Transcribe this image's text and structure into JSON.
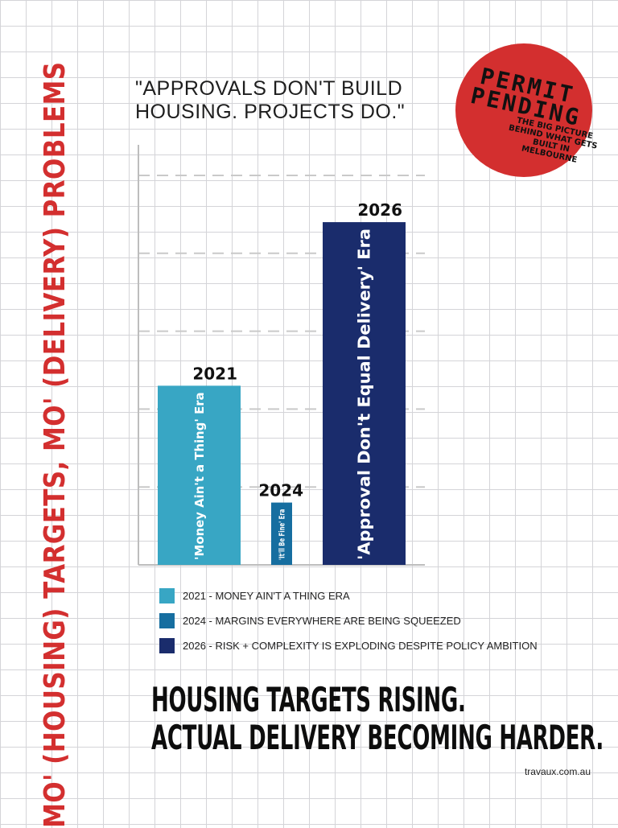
{
  "side_title": "MO' (HOUSING) TARGETS, MO' (DELIVERY) PROBLEMS",
  "quote": {
    "line1": "\"APPROVALS DON'T BUILD",
    "line2": "HOUSING. PROJECTS DO.\""
  },
  "stamp": {
    "line1": "PERMIT",
    "line2": "PENDING",
    "sub1": "THE BIG PICTURE",
    "sub2": "BEHIND WHAT GETS",
    "sub3": "BUILT IN MELBOURNE"
  },
  "chart_data": {
    "type": "bar",
    "categories": [
      "2021",
      "2024",
      "2026"
    ],
    "values": [
      2.3,
      0.8,
      4.4
    ],
    "bar_labels": [
      "'Money Ain't a Thing' Era",
      "'It'll Be Fine' Era",
      "'Approval Don't Equal Delivery' Era"
    ],
    "colors": [
      "#38a6c4",
      "#166ea0",
      "#1a2c6c"
    ],
    "ylim": [
      0,
      5
    ],
    "grid": true,
    "title": "",
    "xlabel": "",
    "ylabel": ""
  },
  "legend": [
    {
      "label": "2021 - MONEY AIN'T A THING ERA",
      "color": "#38a6c4"
    },
    {
      "label": "2024 - MARGINS EVERYWHERE ARE BEING SQUEEZED",
      "color": "#166ea0"
    },
    {
      "label": "2026 - RISK + COMPLEXITY IS EXPLODING DESPITE POLICY AMBITION",
      "color": "#1a2c6c"
    }
  ],
  "headline": {
    "line1": "HOUSING TARGETS RISING.",
    "line2": "ACTUAL DELIVERY BECOMING HARDER."
  },
  "footer": "travaux.com.au"
}
